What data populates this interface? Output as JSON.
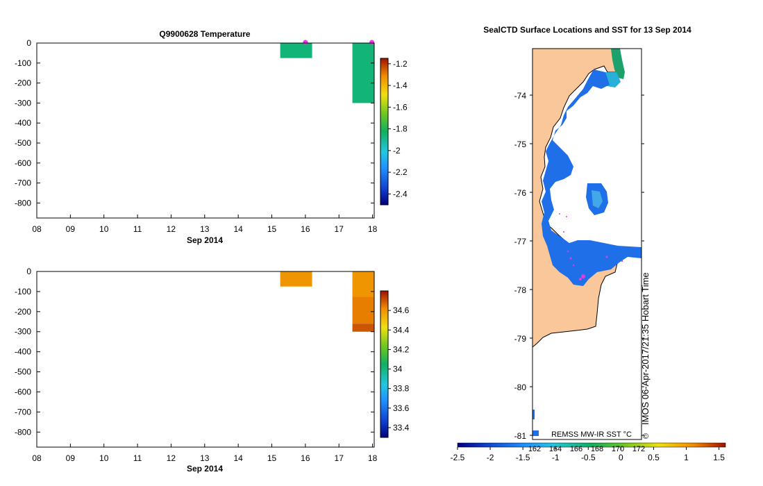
{
  "chart_data": [
    {
      "id": "temperature",
      "type": "heatmap",
      "title": "Q9900628  Temperature",
      "xlabel": "Sep 2014",
      "xticks": [
        "08",
        "09",
        "10",
        "11",
        "12",
        "13",
        "14",
        "15",
        "16",
        "17",
        "18"
      ],
      "xlim": [
        8,
        18.05
      ],
      "ylim": [
        -875,
        0
      ],
      "yticks": [
        0,
        -100,
        -200,
        -300,
        -400,
        -500,
        -600,
        -700,
        -800
      ],
      "cells": [
        {
          "x0": 15.25,
          "x1": 16.2,
          "y0": 0,
          "y1": -75,
          "value": -1.86
        },
        {
          "x0": 17.4,
          "x1": 18.05,
          "y0": 0,
          "y1": -300,
          "value": -1.86
        }
      ],
      "markers": [
        {
          "x": 16.0,
          "y": 0
        },
        {
          "x": 17.98,
          "y": 0
        }
      ],
      "colorbar": {
        "min": -2.5,
        "max": -1.15,
        "ticks": [
          "-1.2",
          "-1.4",
          "-1.6",
          "-1.8",
          "-2",
          "-2.2",
          "-2.4"
        ]
      }
    },
    {
      "id": "salinity",
      "type": "heatmap",
      "title": "",
      "xlabel": "Sep 2014",
      "xticks": [
        "08",
        "09",
        "10",
        "11",
        "12",
        "13",
        "14",
        "15",
        "16",
        "17",
        "18"
      ],
      "xlim": [
        8,
        18.05
      ],
      "ylim": [
        -875,
        0
      ],
      "yticks": [
        0,
        -100,
        -200,
        -300,
        -400,
        -500,
        -600,
        -700,
        -800
      ],
      "cells": [
        {
          "x0": 15.25,
          "x1": 16.2,
          "y0": 0,
          "y1": -75,
          "value": 34.6
        },
        {
          "x0": 17.4,
          "x1": 18.05,
          "y0": 0,
          "y1": -125,
          "value": 34.6
        },
        {
          "x0": 17.4,
          "x1": 18.05,
          "y0": -125,
          "y1": -260,
          "value": 34.64
        },
        {
          "x0": 17.4,
          "x1": 18.05,
          "y0": -260,
          "y1": -300,
          "value": 34.7
        }
      ],
      "colorbar": {
        "min": 33.3,
        "max": 34.8,
        "ticks": [
          "34.6",
          "34.4",
          "34.2",
          "34",
          "33.8",
          "33.6",
          "33.4"
        ]
      }
    },
    {
      "id": "map",
      "type": "map",
      "title": "SealCTD Surface Locations and SST for 13 Sep 2014",
      "lat_ticks": [
        "-74",
        "-75",
        "-76",
        "-77",
        "-78",
        "-79",
        "-80",
        "-81"
      ],
      "lon_ticks": [
        "162",
        "164",
        "166",
        "168",
        "170",
        "172"
      ],
      "colorbar": {
        "label": "REMSS MW-IR SST °C",
        "ticks": [
          "-2.5",
          "-2",
          "-1.5",
          "-1",
          "-0.5",
          "0",
          "0.5",
          "1",
          "1.5"
        ],
        "min": -2.5,
        "max": 1.6
      },
      "colors": {
        "land": "#fac79a",
        "sea_ice_sst": "#2a6ee6",
        "warm_patch": "#3cb4dc",
        "track": "#e03ce0"
      },
      "credit": "IMOS 06-Apr-2017/21:35 Hobart Time",
      "copyright": "©"
    }
  ]
}
